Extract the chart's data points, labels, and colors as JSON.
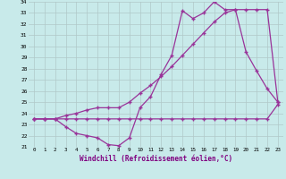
{
  "xlabel": "Windchill (Refroidissement éolien,°C)",
  "x": [
    0,
    1,
    2,
    3,
    4,
    5,
    6,
    7,
    8,
    9,
    10,
    11,
    12,
    13,
    14,
    15,
    16,
    17,
    18,
    19,
    20,
    21,
    22,
    23
  ],
  "line1": [
    23.5,
    23.5,
    23.5,
    23.5,
    23.5,
    23.5,
    23.5,
    23.5,
    23.5,
    23.5,
    23.5,
    23.5,
    23.5,
    23.5,
    23.5,
    23.5,
    23.5,
    23.5,
    23.5,
    23.5,
    23.5,
    23.5,
    23.5,
    24.8
  ],
  "line2": [
    23.5,
    23.5,
    23.5,
    22.8,
    22.2,
    22.0,
    21.8,
    21.2,
    21.1,
    21.8,
    24.5,
    25.5,
    27.5,
    29.2,
    33.2,
    32.5,
    33.0,
    34.0,
    33.3,
    33.3,
    29.5,
    27.8,
    26.2,
    25.0
  ],
  "line3": [
    23.5,
    23.5,
    23.5,
    23.8,
    24.0,
    24.3,
    24.5,
    24.5,
    24.5,
    25.0,
    25.8,
    26.5,
    27.3,
    28.2,
    29.2,
    30.2,
    31.2,
    32.2,
    33.0,
    33.3,
    33.3,
    33.3,
    33.3,
    25.0
  ],
  "line_color": "#993399",
  "bg_color": "#c8eaea",
  "grid_color": "#b0c8c8",
  "ylim": [
    21,
    34
  ],
  "yticks": [
    21,
    22,
    23,
    24,
    25,
    26,
    27,
    28,
    29,
    30,
    31,
    32,
    33,
    34
  ]
}
